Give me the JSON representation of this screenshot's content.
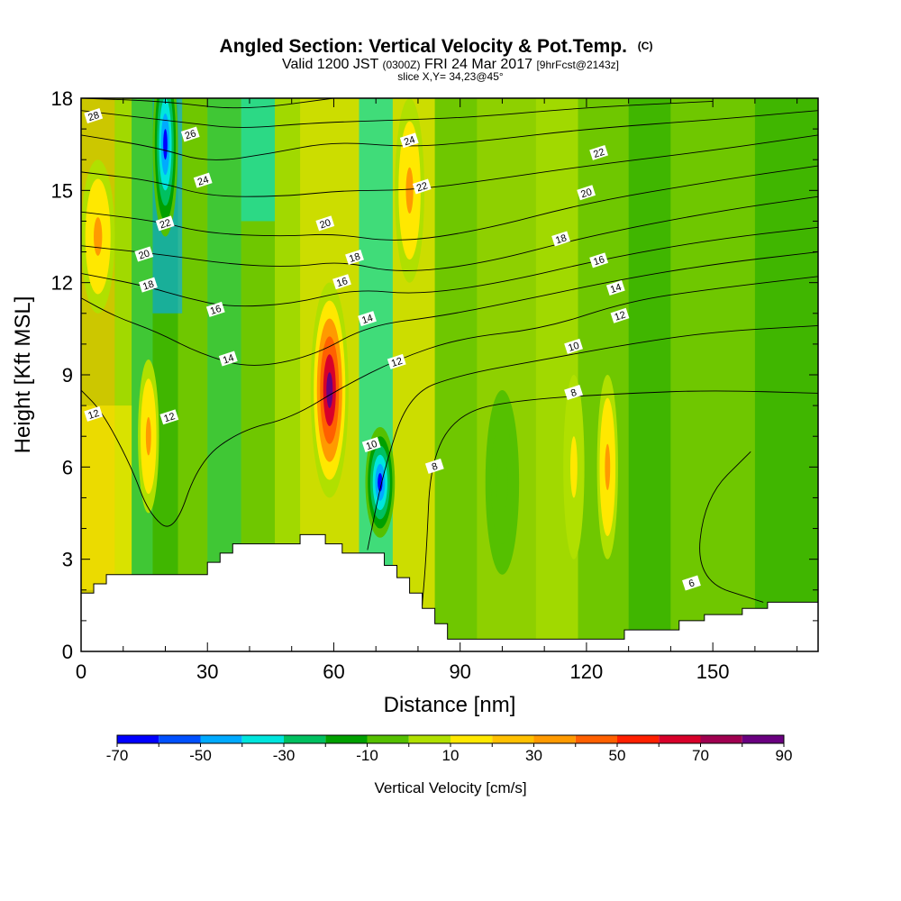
{
  "header": {
    "title_main": "Angled Section: Vertical Velocity & Pot.Temp.",
    "title_mark": "(C)",
    "valid_prefix": "Valid 1200 JST",
    "valid_zulu": "(0300Z)",
    "valid_date": "FRI 24 Mar 2017",
    "valid_fcst": "[9hrFcst@2143z]",
    "slice": "slice X,Y= 34,23@45°"
  },
  "chart_data": {
    "type": "heatmap",
    "xlabel": "Distance [nm]",
    "ylabel": "Height [Kft MSL]",
    "xlim": [
      0,
      175
    ],
    "ylim": [
      0,
      18
    ],
    "x_ticks": [
      0,
      30,
      60,
      90,
      120,
      150
    ],
    "x_tick_labels": [
      "0",
      "30",
      "60",
      "90",
      "120",
      "150"
    ],
    "y_ticks": [
      0,
      3,
      6,
      9,
      12,
      15,
      18
    ],
    "y_tick_labels": [
      "0",
      "3",
      "6",
      "9",
      "12",
      "15",
      "18"
    ],
    "colorbar": {
      "label": "Vertical Velocity [cm/s]",
      "bounds": [
        -70,
        -60,
        -50,
        -40,
        -30,
        -20,
        -10,
        0,
        10,
        20,
        30,
        40,
        50,
        60,
        70,
        80,
        90
      ],
      "tick_values": [
        -70,
        -50,
        -30,
        -10,
        10,
        30,
        50,
        70,
        90
      ],
      "tick_labels": [
        "-70",
        "-50",
        "-30",
        "-10",
        "10",
        "30",
        "50",
        "70",
        "90"
      ],
      "colors": [
        "#0000ff",
        "#0050ff",
        "#00aaff",
        "#00e5dd",
        "#00c060",
        "#00a000",
        "#55c000",
        "#b0e000",
        "#ffe800",
        "#ffc000",
        "#ff9a00",
        "#ff6000",
        "#ff2000",
        "#d8002a",
        "#a00050",
        "#6a0080"
      ]
    },
    "terrain_kft": [
      [
        0,
        1.9
      ],
      [
        3,
        1.9
      ],
      [
        3,
        2.2
      ],
      [
        6,
        2.2
      ],
      [
        6,
        2.5
      ],
      [
        30,
        2.5
      ],
      [
        30,
        2.9
      ],
      [
        33,
        2.9
      ],
      [
        33,
        3.2
      ],
      [
        36,
        3.2
      ],
      [
        36,
        3.5
      ],
      [
        52,
        3.5
      ],
      [
        52,
        3.8
      ],
      [
        58,
        3.8
      ],
      [
        58,
        3.5
      ],
      [
        62,
        3.5
      ],
      [
        62,
        3.2
      ],
      [
        72,
        3.2
      ],
      [
        72,
        2.8
      ],
      [
        75,
        2.8
      ],
      [
        75,
        2.4
      ],
      [
        78,
        2.4
      ],
      [
        78,
        1.9
      ],
      [
        81,
        1.9
      ],
      [
        81,
        1.4
      ],
      [
        84,
        1.4
      ],
      [
        84,
        0.9
      ],
      [
        87,
        0.9
      ],
      [
        87,
        0.4
      ],
      [
        129,
        0.4
      ],
      [
        129,
        0.7
      ],
      [
        142,
        0.7
      ],
      [
        142,
        1.0
      ],
      [
        148,
        1.0
      ],
      [
        148,
        1.2
      ],
      [
        157,
        1.2
      ],
      [
        157,
        1.4
      ],
      [
        163,
        1.4
      ],
      [
        163,
        1.6
      ],
      [
        175,
        1.6
      ]
    ],
    "theta_contours": [
      {
        "label": "6",
        "points": [
          [
            159,
            6.5
          ],
          [
            148,
            5.0
          ],
          [
            146,
            2.3
          ],
          [
            162,
            1.6
          ]
        ]
      },
      {
        "label": "8",
        "points": [
          [
            175,
            8.4
          ],
          [
            150,
            8.5
          ],
          [
            130,
            8.4
          ],
          [
            105,
            8.2
          ],
          [
            90,
            7.8
          ],
          [
            83,
            6.3
          ],
          [
            82,
            3.2
          ],
          [
            81,
            1.5
          ]
        ]
      },
      {
        "label": "10",
        "points": [
          [
            175,
            10.6
          ],
          [
            150,
            10.4
          ],
          [
            130,
            10.0
          ],
          [
            110,
            9.5
          ],
          [
            90,
            9.0
          ],
          [
            78,
            8.4
          ],
          [
            72,
            6.0
          ],
          [
            68,
            3.3
          ]
        ]
      },
      {
        "label": "12",
        "points": [
          [
            175,
            12.2
          ],
          [
            150,
            11.8
          ],
          [
            130,
            11.4
          ],
          [
            110,
            10.5
          ],
          [
            90,
            10.2
          ],
          [
            75,
            9.5
          ],
          [
            62,
            8.6
          ],
          [
            50,
            7.6
          ],
          [
            38,
            7.2
          ],
          [
            28,
            6.2
          ],
          [
            22,
            3.8
          ],
          [
            16,
            4.5
          ],
          [
            12,
            6.0
          ],
          [
            5,
            7.8
          ],
          [
            0,
            8.5
          ]
        ]
      },
      {
        "label": "14",
        "points": [
          [
            175,
            13.0
          ],
          [
            150,
            12.6
          ],
          [
            128,
            12.1
          ],
          [
            100,
            11.3
          ],
          [
            85,
            10.9
          ],
          [
            68,
            10.6
          ],
          [
            55,
            9.6
          ],
          [
            40,
            9.2
          ],
          [
            28,
            9.7
          ],
          [
            18,
            10.4
          ],
          [
            8,
            10.9
          ],
          [
            0,
            11.5
          ]
        ]
      },
      {
        "label": "16",
        "points": [
          [
            175,
            13.8
          ],
          [
            150,
            13.4
          ],
          [
            125,
            12.8
          ],
          [
            100,
            12.0
          ],
          [
            80,
            11.6
          ],
          [
            65,
            11.8
          ],
          [
            50,
            11.3
          ],
          [
            35,
            11.2
          ],
          [
            25,
            11.5
          ],
          [
            15,
            11.9
          ],
          [
            0,
            12.3
          ]
        ]
      },
      {
        "label": "18",
        "points": [
          [
            175,
            14.8
          ],
          [
            150,
            14.3
          ],
          [
            120,
            13.5
          ],
          [
            95,
            12.6
          ],
          [
            75,
            12.3
          ],
          [
            62,
            12.7
          ],
          [
            50,
            12.5
          ],
          [
            35,
            12.6
          ],
          [
            20,
            12.9
          ],
          [
            0,
            13.2
          ]
        ]
      },
      {
        "label": "20",
        "points": [
          [
            175,
            15.8
          ],
          [
            150,
            15.3
          ],
          [
            120,
            14.6
          ],
          [
            95,
            13.7
          ],
          [
            75,
            13.3
          ],
          [
            60,
            13.6
          ],
          [
            48,
            13.5
          ],
          [
            30,
            13.6
          ],
          [
            18,
            14.0
          ],
          [
            0,
            14.3
          ]
        ]
      },
      {
        "label": "22",
        "points": [
          [
            175,
            16.8
          ],
          [
            150,
            16.3
          ],
          [
            120,
            15.8
          ],
          [
            95,
            15.3
          ],
          [
            78,
            15.0
          ],
          [
            62,
            15.0
          ],
          [
            48,
            14.8
          ],
          [
            30,
            14.8
          ],
          [
            18,
            15.3
          ],
          [
            0,
            15.6
          ]
        ]
      },
      {
        "label": "24",
        "points": [
          [
            175,
            17.6
          ],
          [
            150,
            17.3
          ],
          [
            120,
            17.0
          ],
          [
            95,
            16.6
          ],
          [
            78,
            16.4
          ],
          [
            60,
            16.6
          ],
          [
            45,
            16.2
          ],
          [
            30,
            15.9
          ],
          [
            18,
            16.4
          ],
          [
            0,
            16.8
          ]
        ]
      },
      {
        "label": "26",
        "points": [
          [
            150,
            17.9
          ],
          [
            120,
            17.7
          ],
          [
            95,
            17.4
          ],
          [
            78,
            17.3
          ],
          [
            55,
            17.2
          ],
          [
            38,
            17.0
          ],
          [
            25,
            17.2
          ],
          [
            0,
            17.6
          ]
        ]
      },
      {
        "label": "28",
        "points": [
          [
            60,
            18.0
          ],
          [
            38,
            17.6
          ],
          [
            20,
            17.9
          ],
          [
            0,
            18.0
          ]
        ]
      }
    ],
    "theta_label_positions": [
      {
        "label": "28",
        "x": 3,
        "y": 17.4
      },
      {
        "label": "26",
        "x": 26,
        "y": 16.8
      },
      {
        "label": "24",
        "x": 29,
        "y": 15.3
      },
      {
        "label": "22",
        "x": 20,
        "y": 13.9
      },
      {
        "label": "20",
        "x": 15,
        "y": 12.9
      },
      {
        "label": "18",
        "x": 16,
        "y": 11.9
      },
      {
        "label": "16",
        "x": 32,
        "y": 11.1
      },
      {
        "label": "14",
        "x": 35,
        "y": 9.5
      },
      {
        "label": "12",
        "x": 21,
        "y": 7.6
      },
      {
        "label": "12",
        "x": 3,
        "y": 7.7
      },
      {
        "label": "20",
        "x": 58,
        "y": 13.9
      },
      {
        "label": "18",
        "x": 65,
        "y": 12.8
      },
      {
        "label": "16",
        "x": 62,
        "y": 12.0
      },
      {
        "label": "14",
        "x": 68,
        "y": 10.8
      },
      {
        "label": "12",
        "x": 75,
        "y": 9.4
      },
      {
        "label": "10",
        "x": 69,
        "y": 6.7
      },
      {
        "label": "8",
        "x": 84,
        "y": 6.0
      },
      {
        "label": "24",
        "x": 78,
        "y": 16.6
      },
      {
        "label": "22",
        "x": 81,
        "y": 15.1
      },
      {
        "label": "22",
        "x": 123,
        "y": 16.2
      },
      {
        "label": "20",
        "x": 120,
        "y": 14.9
      },
      {
        "label": "18",
        "x": 114,
        "y": 13.4
      },
      {
        "label": "16",
        "x": 123,
        "y": 12.7
      },
      {
        "label": "14",
        "x": 127,
        "y": 11.8
      },
      {
        "label": "12",
        "x": 128,
        "y": 10.9
      },
      {
        "label": "10",
        "x": 117,
        "y": 9.9
      },
      {
        "label": "8",
        "x": 117,
        "y": 8.4
      },
      {
        "label": "6",
        "x": 145,
        "y": 2.2
      }
    ],
    "velocity_field_features": [
      {
        "x": 59,
        "y": 8.5,
        "rx": 4.5,
        "ry": 3.5,
        "value": 90
      },
      {
        "x": 71,
        "y": 5.5,
        "rx": 3.5,
        "ry": 1.8,
        "value": -70
      },
      {
        "x": 20,
        "y": 16.5,
        "rx": 3,
        "ry": 3,
        "value": -70
      },
      {
        "x": 78,
        "y": 15.0,
        "rx": 3.5,
        "ry": 3,
        "value": 30
      },
      {
        "x": 125,
        "y": 6.0,
        "rx": 2.5,
        "ry": 3,
        "value": 30
      },
      {
        "x": 16,
        "y": 7.0,
        "rx": 2.5,
        "ry": 2.5,
        "value": 30
      },
      {
        "x": 117,
        "y": 6.0,
        "rx": 2.5,
        "ry": 3,
        "value": 10
      },
      {
        "x": 100,
        "y": 5.5,
        "rx": 4,
        "ry": 3,
        "value": -10
      },
      {
        "x": 4,
        "y": 13.5,
        "rx": 4,
        "ry": 2.5,
        "value": 30
      }
    ]
  }
}
